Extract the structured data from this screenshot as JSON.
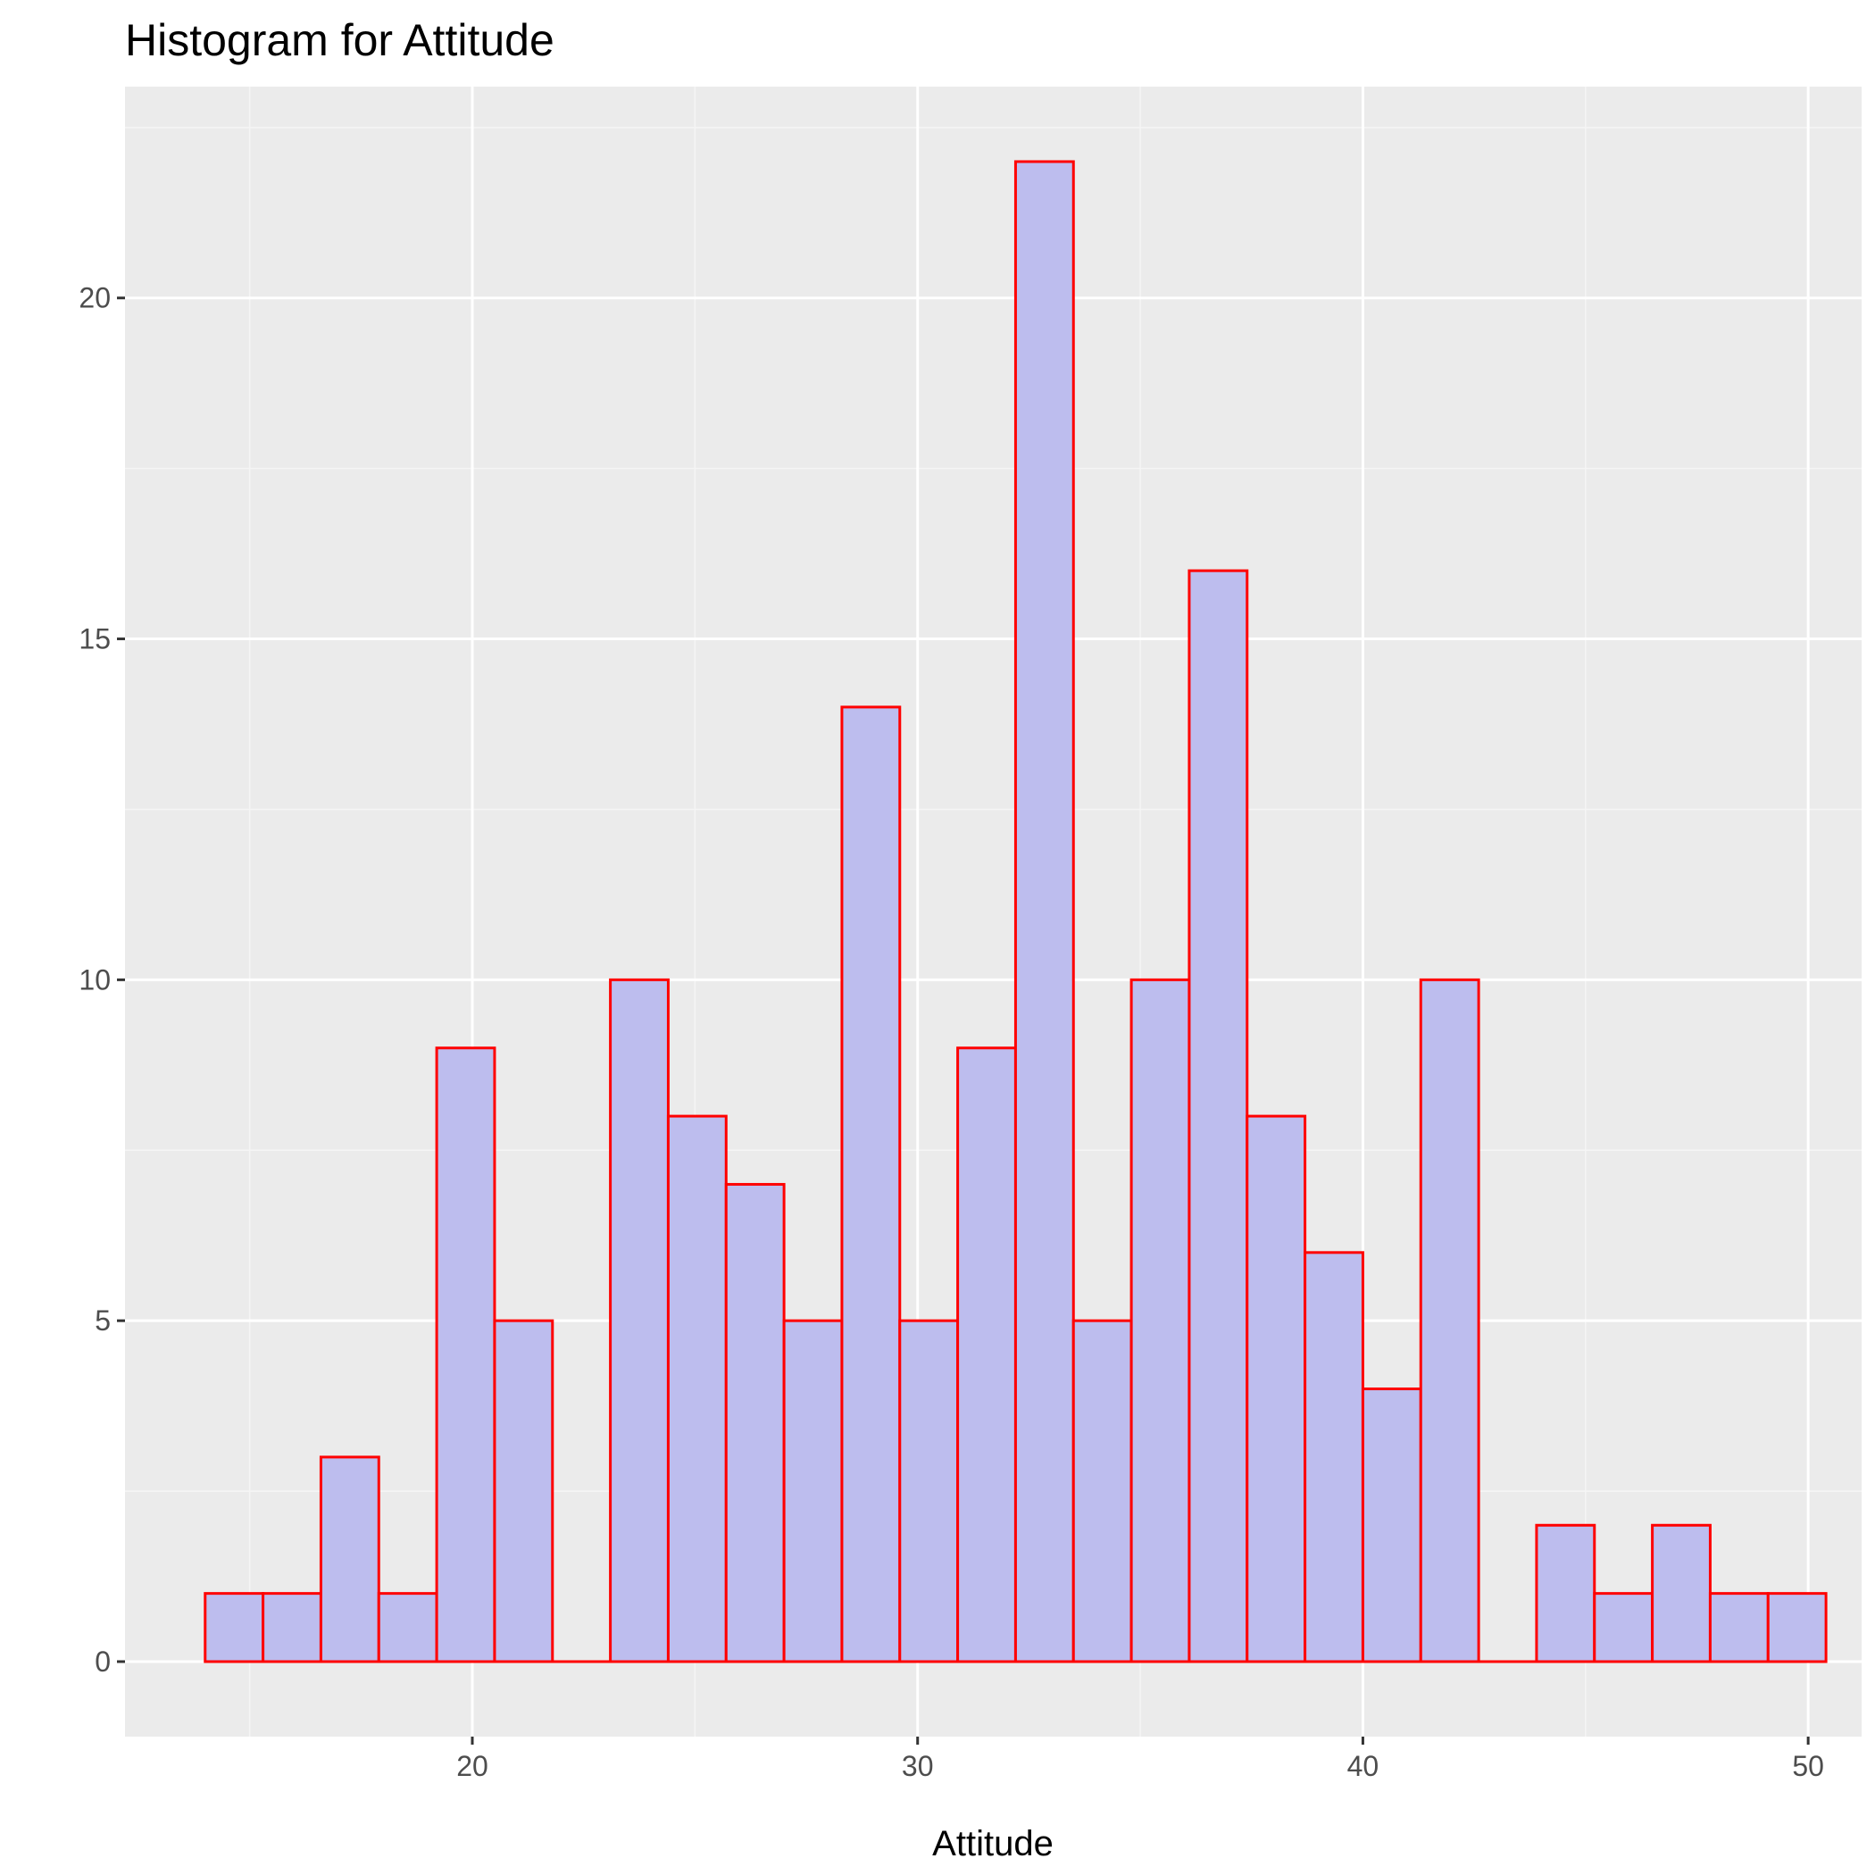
{
  "chart_data": {
    "type": "bar",
    "title": "Histogram for Attitude",
    "xlabel": "Attitude",
    "ylabel": "",
    "xlim": [
      12.2,
      51.2
    ],
    "ylim": [
      -1.1,
      23.1
    ],
    "x_ticks": [
      20,
      30,
      40,
      50
    ],
    "y_ticks": [
      0,
      5,
      10,
      15,
      20
    ],
    "grid": true,
    "legend": "none",
    "bin_edges": [
      14.0,
      15.3,
      16.6,
      17.9,
      19.2,
      20.5,
      21.8,
      23.1,
      24.4,
      25.7,
      27.0,
      28.3,
      29.6,
      30.9,
      32.2,
      33.5,
      34.8,
      36.1,
      37.4,
      38.7,
      40.0,
      41.3,
      42.6,
      43.9,
      45.2,
      46.5,
      47.8,
      49.1,
      50.4
    ],
    "values": [
      1,
      1,
      3,
      1,
      9,
      5,
      0,
      10,
      8,
      7,
      5,
      14,
      5,
      9,
      22,
      5,
      10,
      16,
      8,
      6,
      4,
      10,
      0,
      2,
      1,
      2,
      1,
      1
    ],
    "colors": {
      "bar_fill": "#bdbdee",
      "bar_outline": "#ff0000",
      "panel_background": "#ebebeb",
      "grid_major": "#ffffff",
      "grid_minor": "#f5f5f5",
      "tick_mark": "#333333"
    }
  }
}
